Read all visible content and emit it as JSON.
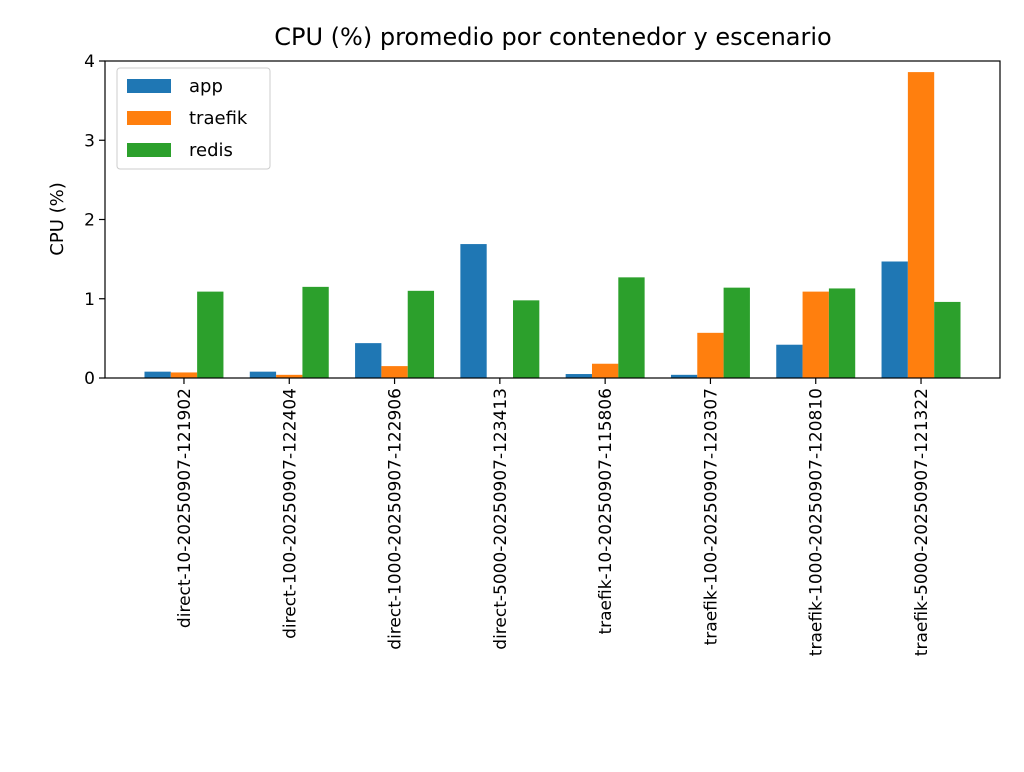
{
  "chart_data": {
    "type": "bar",
    "title": "CPU (%) promedio por contenedor y escenario",
    "xlabel": "",
    "ylabel": "CPU (%)",
    "ylim": [
      0,
      4
    ],
    "yticks": [
      "0",
      "1",
      "2",
      "3",
      "4"
    ],
    "grid": false,
    "legend_position": "upper-left",
    "categories": [
      "direct-10-20250907-121902",
      "direct-100-20250907-122404",
      "direct-1000-20250907-122906",
      "direct-5000-20250907-123413",
      "traefik-10-20250907-115806",
      "traefik-100-20250907-120307",
      "traefik-1000-20250907-120810",
      "traefik-5000-20250907-121322"
    ],
    "series": [
      {
        "name": "app",
        "color": "#1f77b4",
        "values": [
          0.08,
          0.08,
          0.44,
          1.69,
          0.05,
          0.04,
          0.42,
          1.47
        ]
      },
      {
        "name": "traefik",
        "color": "#ff7f0e",
        "values": [
          0.07,
          0.04,
          0.15,
          0.0,
          0.18,
          0.57,
          1.09,
          3.86
        ]
      },
      {
        "name": "redis",
        "color": "#2ca02c",
        "values": [
          1.09,
          1.15,
          1.1,
          0.98,
          1.27,
          1.14,
          1.13,
          0.96
        ]
      }
    ]
  }
}
